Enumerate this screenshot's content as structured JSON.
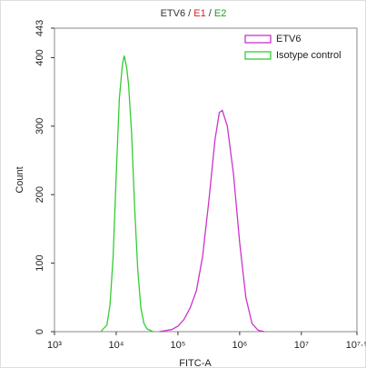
{
  "chart_data": {
    "type": "line",
    "title": [
      {
        "text": "ETV6",
        "color": "#333333"
      },
      {
        "text": " / ",
        "color": "#333333"
      },
      {
        "text": "E1",
        "color": "#d42020"
      },
      {
        "text": " / ",
        "color": "#333333"
      },
      {
        "text": "E2",
        "color": "#20a020"
      }
    ],
    "xlabel": "FITC-A",
    "ylabel": "Count",
    "xscale": "log",
    "legend": "upper right",
    "xlim": [
      1000,
      79432823
    ],
    "ylim": [
      0,
      443
    ],
    "xticks": [
      {
        "value": 1000,
        "label": "10³"
      },
      {
        "value": 10000,
        "label": "10⁴"
      },
      {
        "value": 100000,
        "label": "10⁵"
      },
      {
        "value": 1000000,
        "label": "10⁶"
      },
      {
        "value": 10000000,
        "label": "10⁷"
      },
      {
        "value": 79432823,
        "label": "10⁷·⁹"
      }
    ],
    "yticks": [
      0,
      100,
      200,
      300,
      400,
      443
    ],
    "series": [
      {
        "name": "ETV6",
        "color": "#cc33cc",
        "x": [
          50119,
          79433,
          100000,
          125893,
          158489,
          199526,
          251189,
          316228,
          398107,
          467735,
          524807,
          630957,
          794328,
          1000000,
          1258925,
          1584893,
          1995262,
          2511886
        ],
        "values": [
          0,
          3,
          8,
          18,
          35,
          60,
          110,
          190,
          280,
          320,
          323,
          300,
          230,
          130,
          50,
          12,
          2,
          0
        ]
      },
      {
        "name": "Isotype control",
        "color": "#33cc33",
        "x": [
          5623,
          7079,
          7943,
          8913,
          10000,
          11220,
          12589,
          13490,
          14791,
          15849,
          17783,
          19953,
          22387,
          25119,
          28184,
          31623,
          39811
        ],
        "values": [
          0,
          10,
          40,
          110,
          230,
          340,
          390,
          403,
          385,
          360,
          290,
          180,
          90,
          35,
          12,
          4,
          0
        ]
      }
    ]
  }
}
